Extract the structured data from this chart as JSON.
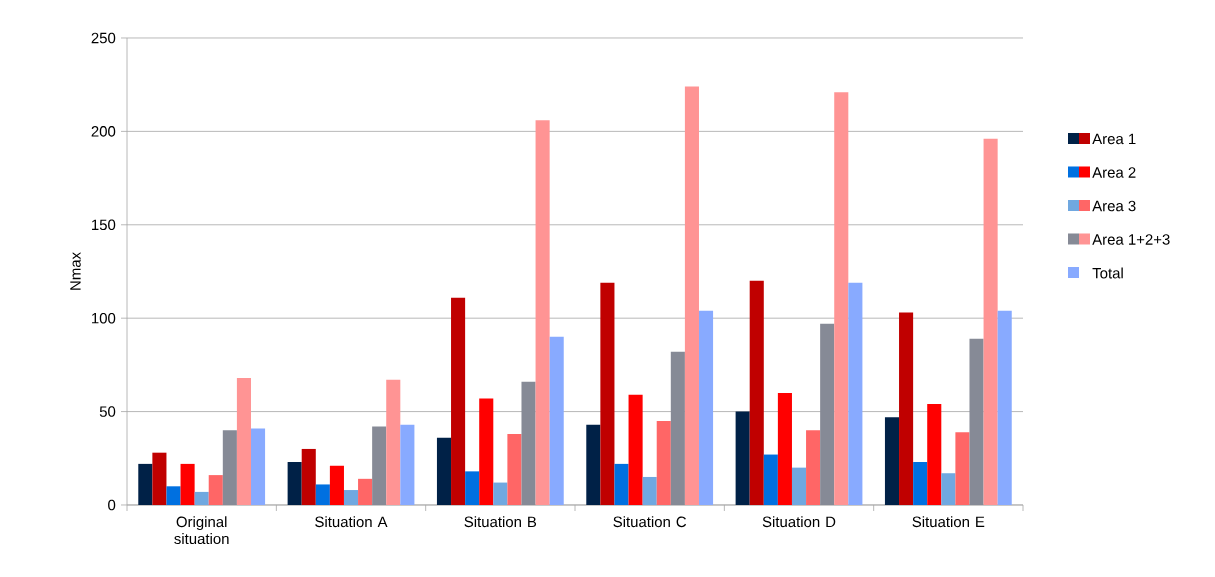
{
  "chart_data": {
    "type": "bar",
    "ylabel": "Nmax",
    "categories": [
      "Original situation",
      "Situation A",
      "Situation B",
      "Situation C",
      "Situation D",
      "Situation E"
    ],
    "series": [
      {
        "name": "Area 1",
        "color": "#002147",
        "values": [
          22,
          23,
          36,
          43,
          50,
          47
        ]
      },
      {
        "color": "#c00000",
        "values": [
          28,
          30,
          111,
          119,
          120,
          103
        ]
      },
      {
        "name": "Area 2",
        "color": "#0070e0",
        "values": [
          10,
          11,
          18,
          22,
          27,
          23
        ]
      },
      {
        "color": "#ff0000",
        "values": [
          22,
          21,
          57,
          59,
          60,
          54
        ]
      },
      {
        "name": "Area 3",
        "color": "#70a8e0",
        "values": [
          7,
          8,
          12,
          15,
          20,
          17
        ]
      },
      {
        "color": "#ff6666",
        "values": [
          16,
          14,
          38,
          45,
          40,
          39
        ]
      },
      {
        "name": "Area 1+2+3",
        "color": "#868a96",
        "values": [
          40,
          42,
          66,
          82,
          97,
          89
        ]
      },
      {
        "color": "#ff9494",
        "values": [
          68,
          67,
          206,
          224,
          221,
          196
        ]
      },
      {
        "name": "Total",
        "color": "#88aaff",
        "values": [
          41,
          43,
          90,
          104,
          119,
          104
        ]
      }
    ],
    "ylim": [
      0,
      250
    ],
    "yticks": [
      0,
      50,
      100,
      150,
      200,
      250
    ],
    "grid": "y",
    "legend": "right"
  }
}
